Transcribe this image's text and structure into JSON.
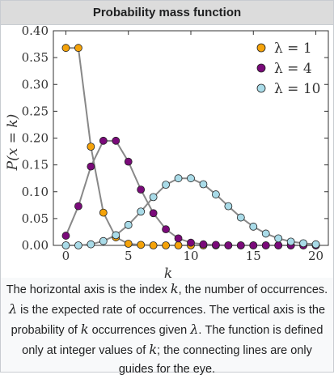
{
  "header": {
    "title": "Probability mass function"
  },
  "caption": {
    "p1": "The horizontal axis is the index ",
    "k1": "k",
    "p2": ", the number of occurrences. ",
    "lam1": "λ",
    "p3": " is the expected rate of occurrences. The vertical axis is the probability of ",
    "k2": "k",
    "p4": " occurrences given ",
    "lam2": "λ",
    "p5": ". The function is defined only at integer values of ",
    "k3": "k",
    "p6": "; the connecting lines are only guides for the eye."
  },
  "chart_data": {
    "type": "scatter",
    "title": "Probability mass function",
    "xlabel": "k",
    "ylabel": "P(x = k)",
    "xlim": [
      -1,
      21
    ],
    "ylim": [
      0,
      0.4
    ],
    "xticks": [
      0,
      5,
      10,
      15,
      20
    ],
    "yticks": [
      0.0,
      0.05,
      0.1,
      0.15,
      0.2,
      0.25,
      0.3,
      0.35,
      0.4
    ],
    "grid": false,
    "legend_position": "top-right",
    "connect_lines": true,
    "line_color": "#888888",
    "series": [
      {
        "name": "λ = 1",
        "color": "#f5a30a",
        "x": [
          0,
          1,
          2,
          3,
          4,
          5,
          6,
          7,
          8,
          9,
          10,
          11,
          12,
          13,
          14,
          15,
          16,
          17,
          18,
          19,
          20
        ],
        "values": [
          0.368,
          0.368,
          0.184,
          0.061,
          0.015,
          0.003,
          0.001,
          0.0,
          0.0,
          0.0,
          0.0,
          0.0,
          0.0,
          0.0,
          0.0,
          0.0,
          0.0,
          0.0,
          0.0,
          0.0,
          0.0
        ]
      },
      {
        "name": "λ = 4",
        "color": "#7a0a7a",
        "x": [
          0,
          1,
          2,
          3,
          4,
          5,
          6,
          7,
          8,
          9,
          10,
          11,
          12,
          13,
          14,
          15,
          16,
          17,
          18,
          19,
          20
        ],
        "values": [
          0.018,
          0.073,
          0.147,
          0.195,
          0.195,
          0.156,
          0.104,
          0.06,
          0.03,
          0.013,
          0.005,
          0.002,
          0.001,
          0.0,
          0.0,
          0.0,
          0.0,
          0.0,
          0.0,
          0.0,
          0.0
        ]
      },
      {
        "name": "λ = 10",
        "color": "#a9dbe8",
        "x": [
          0,
          1,
          2,
          3,
          4,
          5,
          6,
          7,
          8,
          9,
          10,
          11,
          12,
          13,
          14,
          15,
          16,
          17,
          18,
          19,
          20
        ],
        "values": [
          0.0,
          0.0,
          0.002,
          0.008,
          0.019,
          0.038,
          0.063,
          0.09,
          0.113,
          0.125,
          0.125,
          0.114,
          0.095,
          0.073,
          0.052,
          0.035,
          0.022,
          0.013,
          0.007,
          0.004,
          0.002
        ]
      }
    ]
  }
}
